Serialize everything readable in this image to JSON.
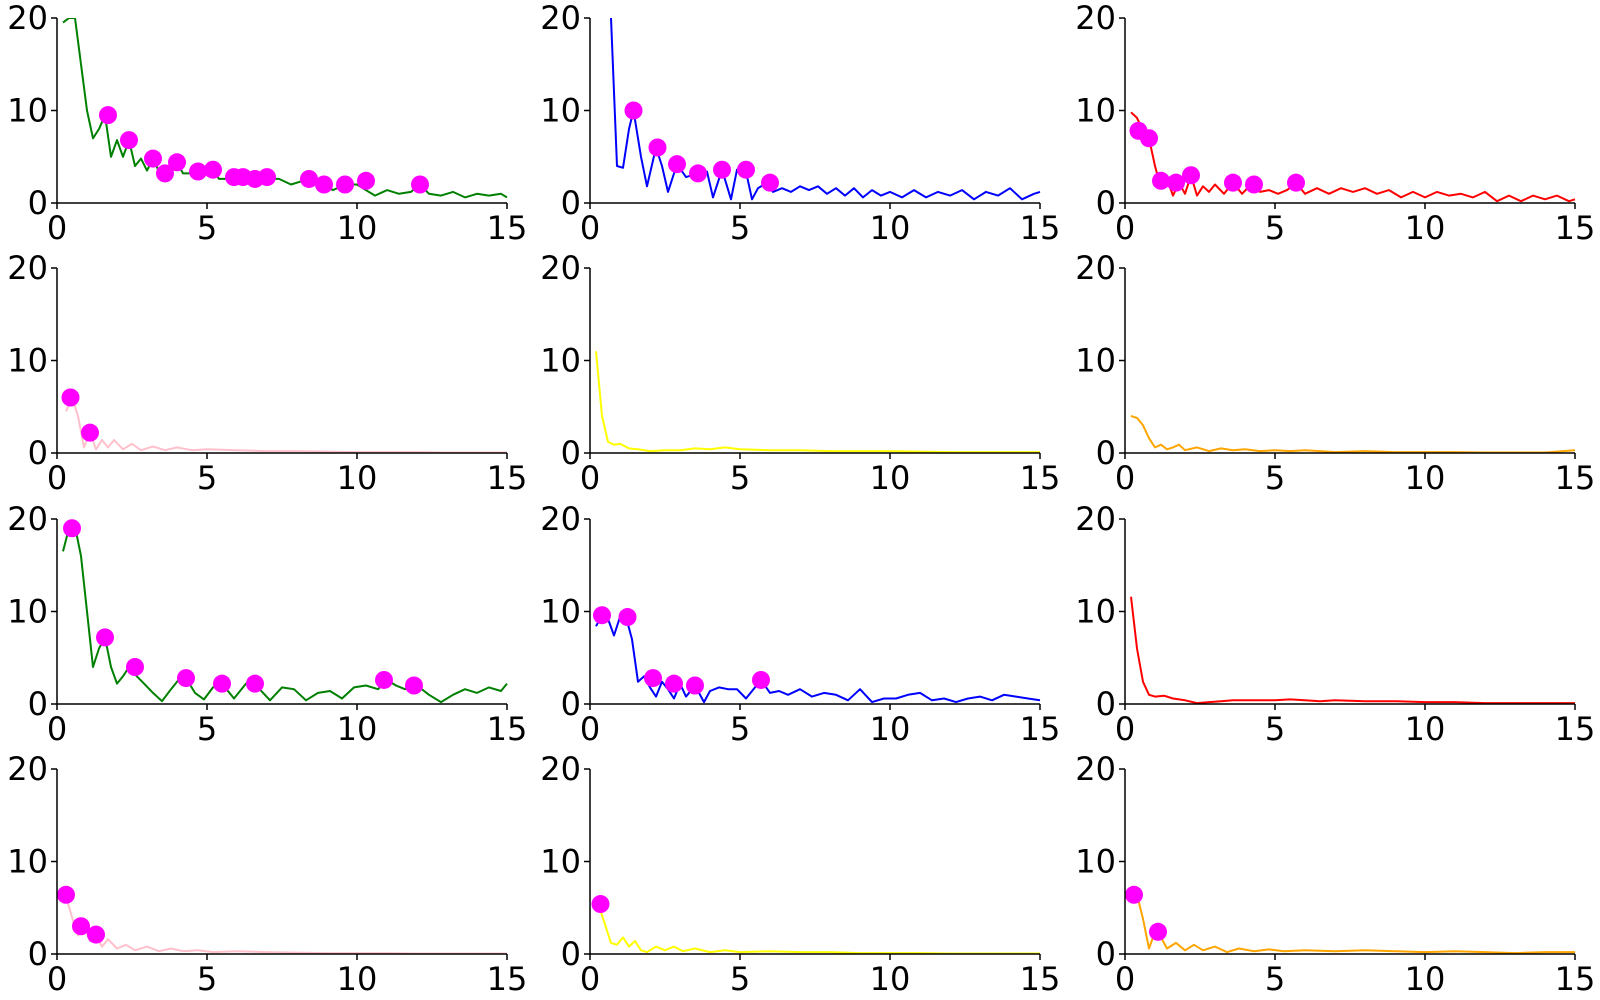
{
  "figure": {
    "colors": {
      "axis": "#000000",
      "peak_marker": "#ff00ff",
      "green": "#008000",
      "blue": "#0000ff",
      "red": "#ff0000",
      "pink": "#ffc0cb",
      "yellow": "#ffff00",
      "orange": "#ffa500"
    }
  },
  "chart_data": [
    {
      "type": "line",
      "panel": "row1-col1",
      "color": "#008000",
      "xlim": [
        0,
        15
      ],
      "ylim": [
        0,
        20
      ],
      "xticks": [
        "0",
        "5",
        "10",
        "15"
      ],
      "yticks": [
        "0",
        "10",
        "20"
      ],
      "x": [
        0.2,
        0.4,
        0.6,
        0.8,
        1.0,
        1.2,
        1.4,
        1.6,
        1.8,
        2.0,
        2.2,
        2.4,
        2.6,
        2.8,
        3.0,
        3.2,
        3.4,
        3.6,
        3.8,
        4.0,
        4.2,
        4.4,
        4.6,
        4.8,
        5.0,
        5.2,
        5.4,
        5.6,
        5.8,
        6.0,
        6.2,
        6.4,
        6.6,
        6.8,
        7.0,
        7.4,
        7.8,
        8.2,
        8.4,
        8.7,
        8.9,
        9.2,
        9.6,
        10.0,
        10.3,
        10.6,
        11.0,
        11.4,
        11.8,
        12.1,
        12.4,
        12.8,
        13.2,
        13.6,
        14.0,
        14.4,
        14.8,
        15.0
      ],
      "y": [
        19.5,
        20,
        20,
        15,
        10,
        7,
        8,
        9.5,
        5,
        6.8,
        5,
        6.8,
        4,
        4.8,
        3.5,
        4.8,
        3.4,
        3.2,
        4,
        4.4,
        3.2,
        3.2,
        3.4,
        2.8,
        3.6,
        3.6,
        2.6,
        2.6,
        2.8,
        2.8,
        2.6,
        2.4,
        2.8,
        2.8,
        2.6,
        2.6,
        2,
        2.4,
        2.6,
        2.0,
        2.0,
        1.4,
        2.0,
        2.0,
        1.4,
        0.8,
        1.4,
        1.0,
        1.2,
        2.0,
        1.0,
        0.8,
        1.2,
        0.6,
        1.0,
        0.8,
        1.0,
        0.6
      ],
      "peaks": {
        "x": [
          1.7,
          2.4,
          3.2,
          3.6,
          4.0,
          4.7,
          5.2,
          5.9,
          6.2,
          6.6,
          7.0,
          8.4,
          8.9,
          9.6,
          10.3,
          12.1
        ],
        "y": [
          9.5,
          6.8,
          4.8,
          3.2,
          4.4,
          3.4,
          3.6,
          2.8,
          2.8,
          2.6,
          2.8,
          2.6,
          2.0,
          2.0,
          2.4,
          2.0
        ]
      }
    },
    {
      "type": "line",
      "panel": "row1-col2",
      "color": "#0000ff",
      "xlim": [
        0,
        15
      ],
      "ylim": [
        0,
        20
      ],
      "xticks": [
        "0",
        "5",
        "10",
        "15"
      ],
      "yticks": [
        "0",
        "10",
        "20"
      ],
      "x": [
        0.7,
        0.9,
        1.1,
        1.3,
        1.45,
        1.7,
        1.9,
        2.2,
        2.4,
        2.6,
        2.9,
        3.2,
        3.6,
        3.9,
        4.1,
        4.4,
        4.7,
        4.9,
        5.2,
        5.4,
        5.6,
        5.9,
        6.1,
        6.4,
        6.7,
        7.0,
        7.3,
        7.6,
        7.9,
        8.2,
        8.5,
        8.8,
        9.1,
        9.4,
        9.7,
        10.0,
        10.4,
        10.8,
        11.2,
        11.6,
        12.0,
        12.4,
        12.8,
        13.2,
        13.6,
        14.0,
        14.4,
        14.8,
        15.0
      ],
      "y": [
        20,
        4,
        3.8,
        8,
        10,
        5,
        1.8,
        6,
        4,
        1.2,
        4.2,
        2.8,
        3.2,
        3.4,
        0.6,
        3.6,
        0.4,
        3.6,
        3.4,
        0.4,
        1.6,
        2.2,
        1.2,
        1.6,
        1.2,
        1.8,
        1.4,
        1.8,
        1.0,
        1.6,
        0.8,
        1.6,
        0.6,
        1.4,
        0.8,
        1.2,
        0.6,
        1.4,
        0.6,
        1.2,
        0.8,
        1.4,
        0.4,
        1.2,
        0.8,
        1.6,
        0.4,
        1.0,
        1.2
      ],
      "peaks": {
        "x": [
          1.45,
          2.25,
          2.9,
          3.6,
          4.4,
          5.2,
          6.0
        ],
        "y": [
          10,
          6,
          4.2,
          3.2,
          3.6,
          3.6,
          2.2
        ]
      }
    },
    {
      "type": "line",
      "panel": "row1-col3",
      "color": "#ff0000",
      "xlim": [
        0,
        15
      ],
      "ylim": [
        0,
        20
      ],
      "xticks": [
        "0",
        "5",
        "10",
        "15"
      ],
      "yticks": [
        "0",
        "10",
        "20"
      ],
      "x": [
        0.2,
        0.4,
        0.6,
        0.8,
        1.0,
        1.2,
        1.4,
        1.6,
        1.8,
        2.0,
        2.2,
        2.4,
        2.6,
        2.8,
        3.0,
        3.3,
        3.6,
        3.9,
        4.2,
        4.5,
        4.8,
        5.1,
        5.4,
        5.7,
        6.0,
        6.4,
        6.8,
        7.2,
        7.6,
        8.0,
        8.4,
        8.8,
        9.2,
        9.6,
        10.0,
        10.4,
        10.8,
        11.2,
        11.6,
        12.0,
        12.4,
        12.8,
        13.2,
        13.6,
        14.0,
        14.4,
        14.8,
        15.0
      ],
      "y": [
        9.8,
        9.2,
        7.8,
        7.0,
        4.0,
        1.6,
        2.6,
        0.8,
        2.2,
        1.0,
        3.0,
        0.8,
        1.8,
        1.2,
        2.0,
        1.0,
        2.2,
        1.0,
        2.0,
        1.2,
        1.4,
        1.0,
        1.4,
        2.2,
        1.0,
        1.6,
        1.0,
        1.6,
        1.2,
        1.6,
        1.0,
        1.4,
        0.6,
        1.2,
        0.6,
        1.2,
        0.8,
        1.0,
        0.6,
        1.2,
        0.2,
        0.8,
        0.2,
        0.8,
        0.4,
        0.8,
        0.2,
        0.4
      ],
      "peaks": {
        "x": [
          0.45,
          0.8,
          1.2,
          1.7,
          2.2,
          3.6,
          4.3,
          5.7
        ],
        "y": [
          7.8,
          7.0,
          2.4,
          2.2,
          3.0,
          2.2,
          2.0,
          2.2
        ]
      }
    },
    {
      "type": "line",
      "panel": "row2-col1",
      "color": "#ffc0cb",
      "xlim": [
        0,
        15
      ],
      "ylim": [
        0,
        20
      ],
      "xticks": [
        "0",
        "5",
        "10",
        "15"
      ],
      "yticks": [
        "0",
        "10",
        "20"
      ],
      "x": [
        0.3,
        0.5,
        0.7,
        0.9,
        1.1,
        1.3,
        1.5,
        1.7,
        1.9,
        2.2,
        2.5,
        2.8,
        3.2,
        3.6,
        4.0,
        4.5,
        5.0,
        6,
        7,
        8,
        9,
        10,
        11,
        12,
        13,
        14,
        15
      ],
      "y": [
        4.5,
        6.0,
        4.0,
        0.6,
        2.2,
        0.4,
        1.4,
        0.6,
        1.4,
        0.4,
        1.0,
        0.3,
        0.7,
        0.3,
        0.6,
        0.3,
        0.4,
        0.3,
        0.2,
        0.2,
        0.15,
        0.1,
        0.1,
        0.1,
        0.05,
        0.05,
        0.05
      ],
      "peaks": {
        "x": [
          0.45,
          1.1
        ],
        "y": [
          6.0,
          2.2
        ]
      }
    },
    {
      "type": "line",
      "panel": "row2-col2",
      "color": "#ffff00",
      "xlim": [
        0,
        15
      ],
      "ylim": [
        0,
        20
      ],
      "xticks": [
        "0",
        "5",
        "10",
        "15"
      ],
      "yticks": [
        "0",
        "10",
        "20"
      ],
      "x": [
        0.2,
        0.4,
        0.6,
        0.8,
        1.0,
        1.3,
        1.6,
        2.0,
        2.5,
        3,
        3.5,
        4,
        4.5,
        5,
        6,
        7,
        8,
        9,
        10,
        11,
        12,
        13,
        14,
        15
      ],
      "y": [
        11,
        4,
        1.2,
        0.9,
        1.0,
        0.5,
        0.4,
        0.2,
        0.3,
        0.3,
        0.5,
        0.4,
        0.6,
        0.4,
        0.3,
        0.3,
        0.2,
        0.2,
        0.2,
        0.15,
        0.1,
        0.1,
        0.1,
        0.1
      ],
      "peaks": {
        "x": [],
        "y": []
      }
    },
    {
      "type": "line",
      "panel": "row2-col3",
      "color": "#ffa500",
      "xlim": [
        0,
        15
      ],
      "ylim": [
        0,
        20
      ],
      "xticks": [
        "0",
        "5",
        "10",
        "15"
      ],
      "yticks": [
        "0",
        "10",
        "20"
      ],
      "x": [
        0.2,
        0.4,
        0.6,
        0.8,
        1.0,
        1.2,
        1.4,
        1.6,
        1.8,
        2.0,
        2.4,
        2.8,
        3.2,
        3.6,
        4.0,
        4.5,
        5,
        5.5,
        6,
        6.5,
        7,
        8,
        9,
        10,
        11,
        12,
        13,
        14,
        15
      ],
      "y": [
        4.0,
        3.8,
        3.0,
        1.6,
        0.6,
        0.9,
        0.4,
        0.6,
        0.9,
        0.3,
        0.6,
        0.2,
        0.5,
        0.3,
        0.4,
        0.2,
        0.3,
        0.2,
        0.3,
        0.2,
        0.1,
        0.2,
        0.1,
        0.1,
        0.1,
        0.05,
        0.05,
        0.05,
        0.3
      ],
      "peaks": {
        "x": [],
        "y": []
      }
    },
    {
      "type": "line",
      "panel": "row3-col1",
      "color": "#008000",
      "xlim": [
        0,
        15
      ],
      "ylim": [
        0,
        20
      ],
      "xticks": [
        "0",
        "5",
        "10",
        "15"
      ],
      "yticks": [
        "0",
        "10",
        "20"
      ],
      "x": [
        0.2,
        0.4,
        0.6,
        0.8,
        1.0,
        1.2,
        1.4,
        1.6,
        1.8,
        2.0,
        2.2,
        2.4,
        2.6,
        2.9,
        3.2,
        3.5,
        3.8,
        4.1,
        4.3,
        4.6,
        4.9,
        5.2,
        5.5,
        5.9,
        6.3,
        6.7,
        7.1,
        7.5,
        7.9,
        8.3,
        8.7,
        9.1,
        9.5,
        9.9,
        10.3,
        10.7,
        11.0,
        11.3,
        11.6,
        12.0,
        12.4,
        12.8,
        13.2,
        13.6,
        14.0,
        14.4,
        14.8,
        15.0
      ],
      "y": [
        16.5,
        19,
        19.2,
        16,
        10,
        4,
        6,
        7.2,
        4,
        2.2,
        3,
        4,
        3.2,
        2.2,
        1.2,
        0.3,
        1.6,
        2.8,
        2.8,
        1.2,
        0.5,
        1.8,
        2.2,
        0.6,
        2.2,
        1.8,
        0.4,
        1.8,
        1.6,
        0.4,
        1.2,
        1.4,
        0.6,
        1.8,
        2.0,
        1.6,
        2.6,
        2.0,
        1.6,
        2.0,
        1.0,
        0.2,
        1.0,
        1.6,
        1.2,
        1.8,
        1.4,
        2.2
      ],
      "peaks": {
        "x": [
          0.5,
          1.6,
          2.6,
          4.3,
          5.5,
          6.6,
          10.9,
          11.9
        ],
        "y": [
          19,
          7.2,
          4,
          2.8,
          2.2,
          2.2,
          2.6,
          2.0
        ]
      }
    },
    {
      "type": "line",
      "panel": "row3-col2",
      "color": "#0000ff",
      "xlim": [
        0,
        15
      ],
      "ylim": [
        0,
        20
      ],
      "xticks": [
        "0",
        "5",
        "10",
        "15"
      ],
      "yticks": [
        "0",
        "10",
        "20"
      ],
      "x": [
        0.2,
        0.4,
        0.6,
        0.8,
        1.0,
        1.2,
        1.4,
        1.6,
        1.8,
        2.0,
        2.2,
        2.4,
        2.6,
        2.8,
        3.0,
        3.2,
        3.5,
        3.8,
        4.0,
        4.3,
        4.6,
        4.9,
        5.2,
        5.5,
        5.7,
        6.0,
        6.3,
        6.6,
        7.0,
        7.4,
        7.8,
        8.2,
        8.6,
        9.0,
        9.4,
        9.8,
        10.2,
        10.6,
        11.0,
        11.4,
        11.8,
        12.2,
        12.6,
        13.0,
        13.4,
        13.8,
        14.2,
        14.6,
        15.0
      ],
      "y": [
        8.4,
        9.6,
        9.2,
        7.4,
        9.4,
        9.4,
        7.0,
        2.4,
        3.0,
        1.8,
        0.8,
        2.4,
        1.6,
        0.6,
        2.2,
        0.8,
        2.0,
        0.2,
        1.4,
        1.8,
        1.6,
        1.6,
        0.6,
        1.8,
        2.6,
        1.2,
        1.4,
        1.0,
        1.6,
        0.8,
        1.2,
        1.0,
        0.4,
        1.6,
        0.2,
        0.6,
        0.6,
        1.0,
        1.2,
        0.4,
        0.6,
        0.2,
        0.6,
        0.8,
        0.4,
        1.0,
        0.8,
        0.6,
        0.4
      ],
      "peaks": {
        "x": [
          0.4,
          1.25,
          2.1,
          2.8,
          3.5,
          5.7
        ],
        "y": [
          9.6,
          9.4,
          2.8,
          2.2,
          2.0,
          2.6
        ]
      }
    },
    {
      "type": "line",
      "panel": "row3-col3",
      "color": "#ff0000",
      "xlim": [
        0,
        15
      ],
      "ylim": [
        0,
        20
      ],
      "xticks": [
        "0",
        "5",
        "10",
        "15"
      ],
      "yticks": [
        "0",
        "10",
        "20"
      ],
      "x": [
        0.2,
        0.4,
        0.6,
        0.8,
        1.0,
        1.3,
        1.6,
        2.0,
        2.4,
        2.8,
        3.2,
        3.6,
        4.0,
        4.5,
        5,
        5.5,
        6,
        6.5,
        7,
        8,
        9,
        10,
        11,
        12,
        13,
        14,
        15
      ],
      "y": [
        11.6,
        6,
        2.4,
        1.0,
        0.8,
        0.9,
        0.6,
        0.4,
        0.1,
        0.2,
        0.3,
        0.4,
        0.4,
        0.4,
        0.4,
        0.5,
        0.4,
        0.3,
        0.4,
        0.3,
        0.3,
        0.2,
        0.2,
        0.1,
        0.1,
        0.1,
        0.1
      ],
      "peaks": {
        "x": [],
        "y": []
      }
    },
    {
      "type": "line",
      "panel": "row4-col1",
      "color": "#ffc0cb",
      "xlim": [
        0,
        15
      ],
      "ylim": [
        0,
        20
      ],
      "xticks": [
        "0",
        "5",
        "10",
        "15"
      ],
      "yticks": [
        "0",
        "10",
        "20"
      ],
      "x": [
        0.3,
        0.5,
        0.7,
        0.9,
        1.1,
        1.3,
        1.5,
        1.7,
        2.0,
        2.3,
        2.6,
        3.0,
        3.4,
        3.8,
        4.2,
        4.7,
        5.2,
        6,
        7,
        8,
        9,
        10,
        11,
        12,
        13,
        14,
        15
      ],
      "y": [
        6.2,
        4.0,
        2.0,
        3.0,
        1.4,
        2.0,
        0.8,
        1.6,
        0.6,
        1.0,
        0.4,
        0.8,
        0.3,
        0.6,
        0.3,
        0.4,
        0.2,
        0.3,
        0.2,
        0.15,
        0.1,
        0.1,
        0.1,
        0.05,
        0.05,
        0.05,
        0.05
      ],
      "peaks": {
        "x": [
          0.3,
          0.8,
          1.3
        ],
        "y": [
          6.4,
          3.0,
          2.1
        ]
      }
    },
    {
      "type": "line",
      "panel": "row4-col2",
      "color": "#ffff00",
      "xlim": [
        0,
        15
      ],
      "ylim": [
        0,
        20
      ],
      "xticks": [
        "0",
        "5",
        "10",
        "15"
      ],
      "yticks": [
        "0",
        "10",
        "20"
      ],
      "x": [
        0.3,
        0.5,
        0.7,
        0.9,
        1.1,
        1.3,
        1.5,
        1.7,
        1.9,
        2.2,
        2.5,
        2.8,
        3.1,
        3.5,
        4.0,
        4.5,
        5,
        6,
        7,
        8,
        9,
        10,
        11,
        12,
        13,
        14,
        15
      ],
      "y": [
        5.2,
        3.2,
        1.2,
        1.0,
        1.8,
        0.8,
        1.4,
        0.4,
        0.2,
        0.8,
        0.4,
        0.8,
        0.3,
        0.6,
        0.2,
        0.4,
        0.2,
        0.3,
        0.2,
        0.2,
        0.1,
        0.1,
        0.1,
        0.05,
        0.05,
        0.05,
        0.05
      ],
      "peaks": {
        "x": [
          0.35
        ],
        "y": [
          5.4
        ]
      }
    },
    {
      "type": "line",
      "panel": "row4-col3",
      "color": "#ffa500",
      "xlim": [
        0,
        15
      ],
      "ylim": [
        0,
        20
      ],
      "xticks": [
        "0",
        "5",
        "10",
        "15"
      ],
      "yticks": [
        "0",
        "10",
        "20"
      ],
      "x": [
        0.2,
        0.4,
        0.6,
        0.8,
        1.0,
        1.2,
        1.4,
        1.7,
        2.0,
        2.3,
        2.6,
        3.0,
        3.4,
        3.8,
        4.3,
        4.8,
        5.3,
        6,
        7,
        8,
        9,
        10,
        11,
        12,
        13,
        14,
        15
      ],
      "y": [
        5.6,
        6.4,
        3.8,
        0.6,
        2.4,
        1.8,
        0.6,
        1.2,
        0.4,
        1.0,
        0.4,
        0.8,
        0.2,
        0.6,
        0.3,
        0.5,
        0.3,
        0.4,
        0.3,
        0.4,
        0.3,
        0.2,
        0.3,
        0.2,
        0.1,
        0.2,
        0.2
      ],
      "peaks": {
        "x": [
          0.3,
          1.1
        ],
        "y": [
          6.4,
          2.4
        ]
      }
    }
  ]
}
